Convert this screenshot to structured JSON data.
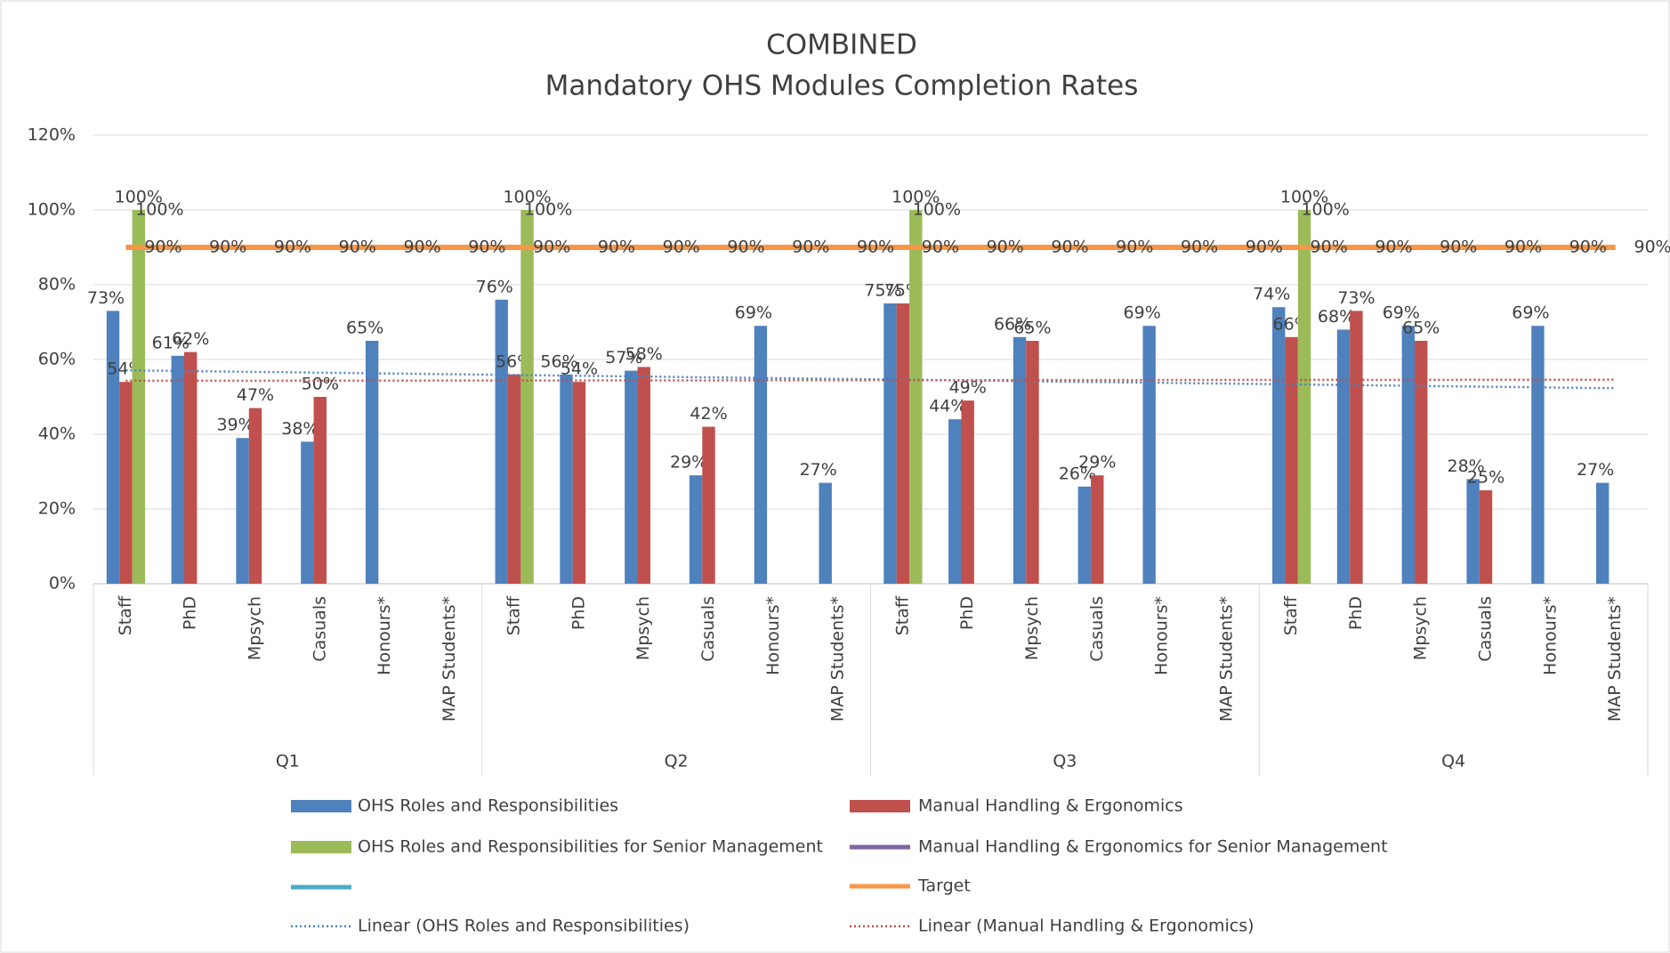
{
  "chart_data": {
    "type": "bar",
    "title": "COMBINED",
    "subtitle": "Mandatory OHS Modules Completion Rates",
    "category_groups": [
      "Q1",
      "Q2",
      "Q3",
      "Q4"
    ],
    "categories": [
      "Staff",
      "PhD",
      "Mpsych",
      "Casuals",
      "Honours*",
      "MAP Students*",
      "Staff",
      "PhD",
      "Mpsych",
      "Casuals",
      "Honours*",
      "MAP Students*",
      "Staff",
      "PhD",
      "Mpsych",
      "Casuals",
      "Honours*",
      "MAP Students*",
      "Staff",
      "PhD",
      "Mpsych",
      "Casuals",
      "Honours*",
      "MAP Students*"
    ],
    "ylim": [
      0,
      120
    ],
    "yticks": [
      {
        "value": 0,
        "label": "0%"
      },
      {
        "value": 20,
        "label": "20%"
      },
      {
        "value": 40,
        "label": "40%"
      },
      {
        "value": 60,
        "label": "60%"
      },
      {
        "value": 80,
        "label": "80%"
      },
      {
        "value": 100,
        "label": "100%"
      },
      {
        "value": 120,
        "label": "120%"
      }
    ],
    "grid": true,
    "series": [
      {
        "name": "OHS Roles and Responsibilities",
        "type": "bar",
        "color": "#4f81bd",
        "values": [
          73,
          61,
          39,
          38,
          65,
          null,
          76,
          56,
          57,
          29,
          69,
          27,
          75,
          44,
          66,
          26,
          69,
          null,
          74,
          68,
          69,
          28,
          69,
          27
        ],
        "value_labels": [
          "73%",
          "61%",
          "39%",
          "38%",
          "65%",
          null,
          "76%",
          "56%",
          "57%",
          "29%",
          "69%",
          "27%",
          "75%",
          "44%",
          "66%",
          "26%",
          "69%",
          null,
          "74%",
          "68%",
          "69%",
          "28%",
          "69%",
          "27%"
        ]
      },
      {
        "name": "Manual Handling & Ergonomics",
        "type": "bar",
        "color": "#c0504d",
        "values": [
          54,
          62,
          47,
          50,
          null,
          null,
          56,
          54,
          58,
          42,
          null,
          null,
          75,
          49,
          65,
          29,
          null,
          null,
          66,
          73,
          65,
          25,
          null,
          null
        ],
        "value_labels": [
          "54%",
          "62%",
          "47%",
          "50%",
          null,
          null,
          "56%",
          "54%",
          "58%",
          "42%",
          null,
          null,
          "75%",
          "49%",
          "65%",
          "29%",
          null,
          null,
          "66%",
          "73%",
          "65%",
          "25%",
          null,
          null
        ]
      },
      {
        "name": "OHS Roles and Responsibilities for Senior Management",
        "type": "bar",
        "color": "#9bbb59",
        "values": [
          100,
          null,
          null,
          null,
          null,
          null,
          100,
          null,
          null,
          null,
          null,
          null,
          100,
          null,
          null,
          null,
          null,
          null,
          100,
          null,
          null,
          null,
          null,
          null
        ],
        "value_labels": [
          "100%",
          null,
          null,
          null,
          null,
          null,
          "100%",
          null,
          null,
          null,
          null,
          null,
          "100%",
          null,
          null,
          null,
          null,
          null,
          "100%",
          null,
          null,
          null,
          null,
          null
        ]
      },
      {
        "name": "Manual Handling & Ergonomics for Senior Management",
        "type": "line",
        "color": "#8064a2",
        "values": [
          100,
          null,
          null,
          null,
          null,
          null,
          100,
          null,
          null,
          null,
          null,
          null,
          100,
          null,
          null,
          null,
          null,
          null,
          100,
          null,
          null,
          null,
          null,
          null
        ],
        "value_labels": [
          "100%",
          null,
          null,
          null,
          null,
          null,
          "100%",
          null,
          null,
          null,
          null,
          null,
          "100%",
          null,
          null,
          null,
          null,
          null,
          "100%",
          null,
          null,
          null,
          null,
          null
        ]
      },
      {
        "name": "Target",
        "type": "line",
        "color": "#f79646",
        "values": [
          90,
          90,
          90,
          90,
          90,
          90,
          90,
          90,
          90,
          90,
          90,
          90,
          90,
          90,
          90,
          90,
          90,
          90,
          90,
          90,
          90,
          90,
          90,
          90
        ],
        "value_labels": [
          "90%",
          "90%",
          "90%",
          "90%",
          "90%",
          "90%",
          "90%",
          "90%",
          "90%",
          "90%",
          "90%",
          "90%",
          "90%",
          "90%",
          "90%",
          "90%",
          "90%",
          "90%",
          "90%",
          "90%",
          "90%",
          "90%",
          "90%",
          "90%"
        ]
      }
    ],
    "trendlines": [
      {
        "name": "Linear (OHS Roles and Responsibilities)",
        "color": "#4f81bd",
        "values": [
          57.1,
          52.3
        ]
      },
      {
        "name": "Linear (Manual Handling & Ergonomics)",
        "color": "#c0504d",
        "values": [
          54.3,
          54.6
        ]
      }
    ]
  }
}
